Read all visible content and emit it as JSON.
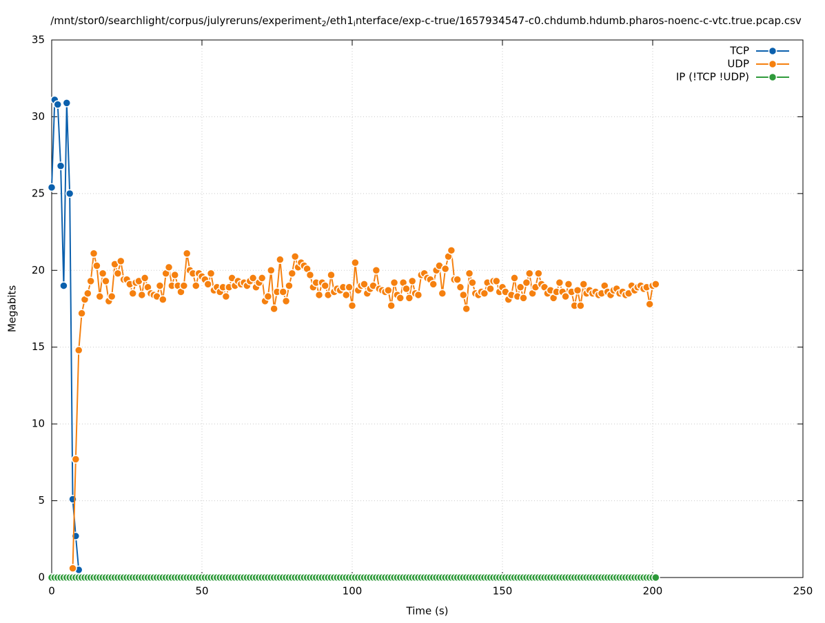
{
  "chart_data": {
    "type": "line",
    "title": [
      "/mnt/stor0/searchlight/corpus/julyreruns/experiment",
      "2",
      "/eth1",
      "i",
      "nterface/exp-c-true/1657934547-c0.chdumb.hdumb.pharos-noenc-c-vtc.true.pcap.csv"
    ],
    "xlabel": "Time (s)",
    "ylabel": "Megabits",
    "xlim": [
      0,
      250
    ],
    "xticks": [
      0,
      50,
      100,
      150,
      200,
      250
    ],
    "ylim": [
      0,
      35
    ],
    "yticks": [
      0,
      5,
      10,
      15,
      20,
      25,
      30,
      35
    ],
    "grid": true,
    "legend": "top-right",
    "series": [
      {
        "name": "TCP",
        "color": "#0b60ad",
        "x": [
          0,
          1,
          2,
          3,
          4,
          5,
          6,
          7,
          8,
          9
        ],
        "values": [
          25.4,
          31.1,
          30.8,
          26.8,
          19.0,
          30.9,
          25.0,
          5.1,
          2.7,
          0.5
        ]
      },
      {
        "name": "UDP",
        "color": "#f5800f",
        "x": [
          7,
          8,
          9,
          10,
          11,
          12,
          13,
          14,
          15,
          16,
          17,
          18,
          19,
          20,
          21,
          22,
          23,
          24,
          25,
          26,
          27,
          28,
          29,
          30,
          31,
          32,
          33,
          34,
          35,
          36,
          37,
          38,
          39,
          40,
          41,
          42,
          43,
          44,
          45,
          46,
          47,
          48,
          49,
          50,
          51,
          52,
          53,
          54,
          55,
          56,
          57,
          58,
          59,
          60,
          61,
          62,
          63,
          64,
          65,
          66,
          67,
          68,
          69,
          70,
          71,
          72,
          73,
          74,
          75,
          76,
          77,
          78,
          79,
          80,
          81,
          82,
          83,
          84,
          85,
          86,
          87,
          88,
          89,
          90,
          91,
          92,
          93,
          94,
          95,
          96,
          97,
          98,
          99,
          100,
          101,
          102,
          103,
          104,
          105,
          106,
          107,
          108,
          109,
          110,
          111,
          112,
          113,
          114,
          115,
          116,
          117,
          118,
          119,
          120,
          121,
          122,
          123,
          124,
          125,
          126,
          127,
          128,
          129,
          130,
          131,
          132,
          133,
          134,
          135,
          136,
          137,
          138,
          139,
          140,
          141,
          142,
          143,
          144,
          145,
          146,
          147,
          148,
          149,
          150,
          151,
          152,
          153,
          154,
          155,
          156,
          157,
          158,
          159,
          160,
          161,
          162,
          163,
          164,
          165,
          166,
          167,
          168,
          169,
          170,
          171,
          172,
          173,
          174,
          175,
          176,
          177,
          178,
          179,
          180,
          181,
          182,
          183,
          184,
          185,
          186,
          187,
          188,
          189,
          190,
          191,
          192,
          193,
          194,
          195,
          196,
          197,
          198,
          199,
          200,
          201
        ],
        "values": [
          0.6,
          7.7,
          14.8,
          17.2,
          18.1,
          18.5,
          19.3,
          21.1,
          20.3,
          18.3,
          19.8,
          19.3,
          18.0,
          18.3,
          20.4,
          19.8,
          20.6,
          19.4,
          19.4,
          19.1,
          18.5,
          19.2,
          19.3,
          18.4,
          19.5,
          18.9,
          18.5,
          18.4,
          18.3,
          19.0,
          18.1,
          19.8,
          20.2,
          19.0,
          19.7,
          19.0,
          18.6,
          19.0,
          21.1,
          20.0,
          19.8,
          19.0,
          19.8,
          19.6,
          19.4,
          19.1,
          19.8,
          18.7,
          18.9,
          18.6,
          18.9,
          18.3,
          18.9,
          19.5,
          19.0,
          19.3,
          19.1,
          19.2,
          19.0,
          19.3,
          19.5,
          18.9,
          19.2,
          19.5,
          18.0,
          18.3,
          20.0,
          17.5,
          18.6,
          20.7,
          18.6,
          18.0,
          19.0,
          19.8,
          20.9,
          20.2,
          20.5,
          20.3,
          20.1,
          19.7,
          18.9,
          19.2,
          18.4,
          19.2,
          19.0,
          18.4,
          19.7,
          18.6,
          18.8,
          18.7,
          18.9,
          18.4,
          18.9,
          17.7,
          20.5,
          18.7,
          19.0,
          19.1,
          18.5,
          18.8,
          19.0,
          20.0,
          18.8,
          18.7,
          18.6,
          18.7,
          17.7,
          19.2,
          18.4,
          18.2,
          19.2,
          18.8,
          18.2,
          19.3,
          18.5,
          18.4,
          19.7,
          19.8,
          19.5,
          19.4,
          19.1,
          20.0,
          20.3,
          18.5,
          20.1,
          20.9,
          21.3,
          19.4,
          19.4,
          18.9,
          18.4,
          17.5,
          19.8,
          19.2,
          18.5,
          18.4,
          18.6,
          18.5,
          19.2,
          18.8,
          19.3,
          19.3,
          18.6,
          18.9,
          18.6,
          18.1,
          18.4,
          19.5,
          18.3,
          18.9,
          18.2,
          19.2,
          19.8,
          18.5,
          18.9,
          19.8,
          19.1,
          18.9,
          18.5,
          18.7,
          18.2,
          18.6,
          19.2,
          18.6,
          18.3,
          19.1,
          18.6,
          17.7,
          18.7,
          17.7,
          19.1,
          18.5,
          18.7,
          18.5,
          18.6,
          18.4,
          18.5,
          19.0,
          18.6,
          18.4,
          18.7,
          18.8,
          18.5,
          18.6,
          18.4,
          18.5,
          19.0,
          18.7,
          18.9,
          19.0,
          18.8,
          18.9,
          17.8,
          19.0,
          19.1
        ]
      },
      {
        "name": "IP (!TCP  !UDP)",
        "color": "#2e9a3a",
        "x": [
          0,
          1,
          2,
          3,
          4,
          5,
          6,
          7,
          8,
          9,
          10,
          11,
          12,
          13,
          14,
          15,
          16,
          17,
          18,
          19,
          20,
          21,
          22,
          23,
          24,
          25,
          26,
          27,
          28,
          29,
          30,
          31,
          32,
          33,
          34,
          35,
          36,
          37,
          38,
          39,
          40,
          41,
          42,
          43,
          44,
          45,
          46,
          47,
          48,
          49,
          50,
          51,
          52,
          53,
          54,
          55,
          56,
          57,
          58,
          59,
          60,
          61,
          62,
          63,
          64,
          65,
          66,
          67,
          68,
          69,
          70,
          71,
          72,
          73,
          74,
          75,
          76,
          77,
          78,
          79,
          80,
          81,
          82,
          83,
          84,
          85,
          86,
          87,
          88,
          89,
          90,
          91,
          92,
          93,
          94,
          95,
          96,
          97,
          98,
          99,
          100,
          101,
          102,
          103,
          104,
          105,
          106,
          107,
          108,
          109,
          110,
          111,
          112,
          113,
          114,
          115,
          116,
          117,
          118,
          119,
          120,
          121,
          122,
          123,
          124,
          125,
          126,
          127,
          128,
          129,
          130,
          131,
          132,
          133,
          134,
          135,
          136,
          137,
          138,
          139,
          140,
          141,
          142,
          143,
          144,
          145,
          146,
          147,
          148,
          149,
          150,
          151,
          152,
          153,
          154,
          155,
          156,
          157,
          158,
          159,
          160,
          161,
          162,
          163,
          164,
          165,
          166,
          167,
          168,
          169,
          170,
          171,
          172,
          173,
          174,
          175,
          176,
          177,
          178,
          179,
          180,
          181,
          182,
          183,
          184,
          185,
          186,
          187,
          188,
          189,
          190,
          191,
          192,
          193,
          194,
          195,
          196,
          197,
          198,
          199,
          200,
          201
        ],
        "values": [
          0,
          0,
          0,
          0,
          0,
          0,
          0,
          0,
          0,
          0,
          0,
          0,
          0,
          0,
          0,
          0,
          0,
          0,
          0,
          0,
          0,
          0,
          0,
          0,
          0,
          0,
          0,
          0,
          0,
          0,
          0,
          0,
          0,
          0,
          0,
          0,
          0,
          0,
          0,
          0,
          0,
          0,
          0,
          0,
          0,
          0,
          0,
          0,
          0,
          0,
          0,
          0,
          0,
          0,
          0,
          0,
          0,
          0,
          0,
          0,
          0,
          0,
          0,
          0,
          0,
          0,
          0,
          0,
          0,
          0,
          0,
          0,
          0,
          0,
          0,
          0,
          0,
          0,
          0,
          0,
          0,
          0,
          0,
          0,
          0,
          0,
          0,
          0,
          0,
          0,
          0,
          0,
          0,
          0,
          0,
          0,
          0,
          0,
          0,
          0,
          0,
          0,
          0,
          0,
          0,
          0,
          0,
          0,
          0,
          0,
          0,
          0,
          0,
          0,
          0,
          0,
          0,
          0,
          0,
          0,
          0,
          0,
          0,
          0,
          0,
          0,
          0,
          0,
          0,
          0,
          0,
          0,
          0,
          0,
          0,
          0,
          0,
          0,
          0,
          0,
          0,
          0,
          0,
          0,
          0,
          0,
          0,
          0,
          0,
          0,
          0,
          0,
          0,
          0,
          0,
          0,
          0,
          0,
          0,
          0,
          0,
          0,
          0,
          0,
          0,
          0,
          0,
          0,
          0,
          0,
          0,
          0,
          0,
          0,
          0,
          0,
          0,
          0,
          0,
          0,
          0,
          0,
          0,
          0,
          0,
          0,
          0,
          0,
          0,
          0,
          0,
          0,
          0,
          0,
          0,
          0,
          0,
          0,
          0,
          0,
          0,
          0
        ]
      }
    ]
  }
}
